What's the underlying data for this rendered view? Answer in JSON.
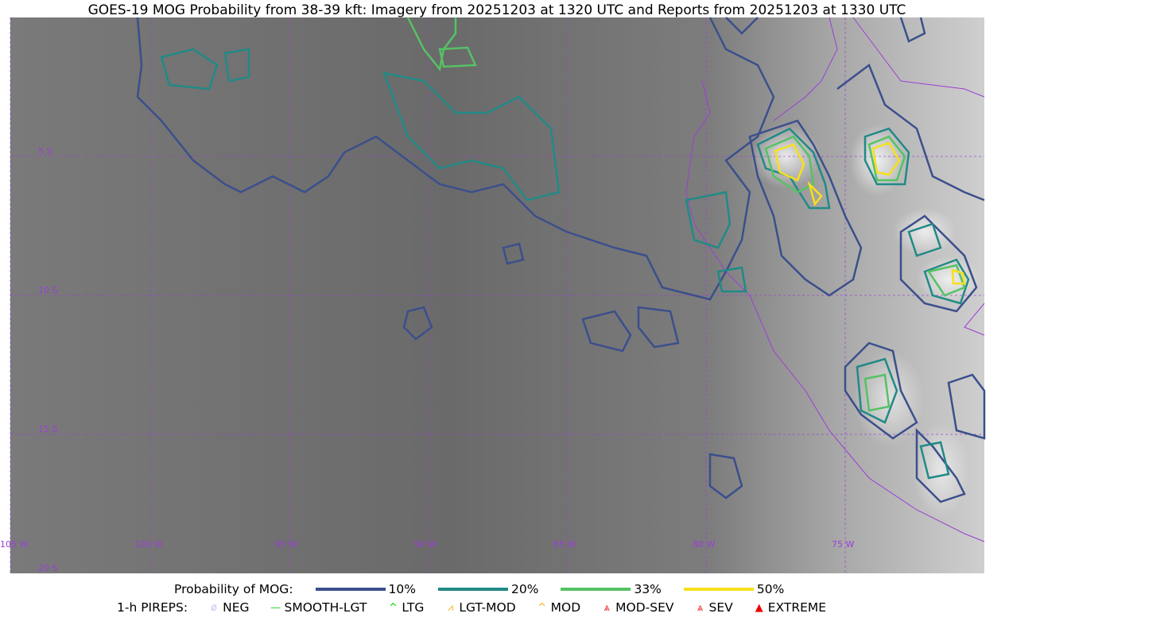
{
  "title": "GOES-19 MOG Probability from 38-39 kft: Imagery from 20251203 at 1320 UTC and Reports from 20251203 at 1330 UTC",
  "map": {
    "lon_labels": [
      "105 W",
      "100 W",
      "95 W",
      "90 W",
      "85 W",
      "80 W",
      "75 W"
    ],
    "lat_labels": [
      "5 S",
      "10 S",
      "15 S",
      "20 S"
    ],
    "grid_color": "#9b3fd6"
  },
  "legend": {
    "prob_label": "Probability of MOG:",
    "levels": [
      {
        "label": "10%",
        "color": "#3b4f8c"
      },
      {
        "label": "20%",
        "color": "#218a86"
      },
      {
        "label": "33%",
        "color": "#55c264"
      },
      {
        "label": "50%",
        "color": "#f6e01c"
      }
    ],
    "pireps_label": "1-h PIREPS:",
    "pireps": [
      {
        "label": "NEG",
        "icon": "neg-circle-icon",
        "color": "#c8c8f0"
      },
      {
        "label": "SMOOTH-LGT",
        "icon": "line-icon",
        "color": "#22dd22"
      },
      {
        "label": "LTG",
        "icon": "caret-icon",
        "color": "#00dd00"
      },
      {
        "label": "LGT-MOD",
        "icon": "triangle-caret-icon",
        "color": "#f6b21c"
      },
      {
        "label": "MOD",
        "icon": "caret-icon",
        "color": "#f6b21c"
      },
      {
        "label": "MOD-SEV",
        "icon": "double-caret-icon",
        "color": "#ee2222"
      },
      {
        "label": "SEV",
        "icon": "double-caret-icon",
        "color": "#ee2222"
      },
      {
        "label": "EXTREME",
        "icon": "filled-triangle-icon",
        "color": "#ee0000"
      }
    ]
  }
}
